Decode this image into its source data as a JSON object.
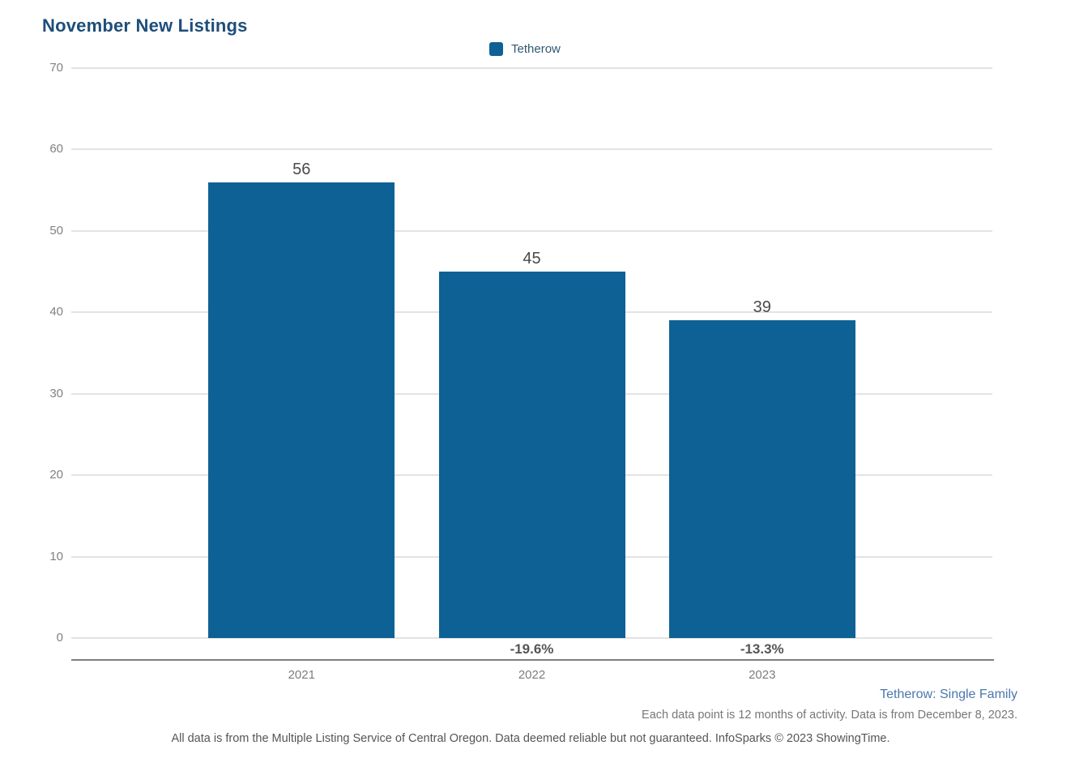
{
  "chart_data": {
    "type": "bar",
    "title": "November New Listings",
    "series_name": "Tetherow",
    "categories": [
      "2021",
      "2022",
      "2023"
    ],
    "values": [
      56,
      45,
      39
    ],
    "pct_change_labels": [
      "",
      "-19.6%",
      "-13.3%"
    ],
    "yticks": [
      0,
      10,
      20,
      30,
      40,
      50,
      60,
      70
    ],
    "ylim": [
      0,
      70
    ],
    "grid": true,
    "legend_position": "top-center",
    "bar_color": "#0e6194"
  },
  "footer": {
    "series_note": "Tetherow: Single Family",
    "period_note": "Each data point is 12 months of activity. Data is from December 8, 2023.",
    "disclaimer": "All data is from the Multiple Listing Service of Central Oregon. Data deemed reliable but not guaranteed. InfoSparks © 2023 ShowingTime."
  },
  "colors": {
    "title": "#1e4e79",
    "bar": "#0e6194",
    "footer_link": "#4a77ad",
    "axis_label": "#818181"
  }
}
